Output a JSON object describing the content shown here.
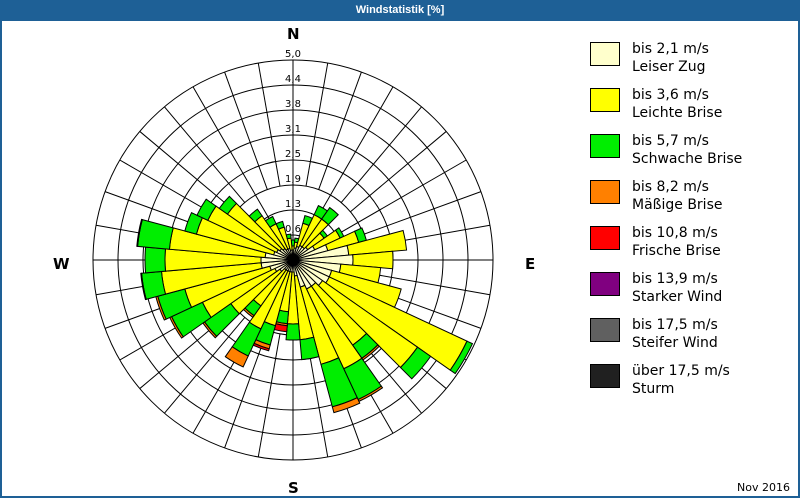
{
  "title": "Windstatistik [%]",
  "footer_date": "Nov 2016",
  "cardinals": {
    "n": "N",
    "e": "E",
    "s": "S",
    "w": "W"
  },
  "colors": [
    "#ffffcc",
    "#ffff00",
    "#00ee00",
    "#ff8000",
    "#ff0000",
    "#800080",
    "#606060",
    "#202020"
  ],
  "legend": [
    {
      "range": "bis 2,1 m/s",
      "name": "Leiser Zug",
      "color": "#ffffcc"
    },
    {
      "range": "bis 3,6 m/s",
      "name": "Leichte Brise",
      "color": "#ffff00"
    },
    {
      "range": "bis 5,7 m/s",
      "name": "Schwache Brise",
      "color": "#00ee00"
    },
    {
      "range": "bis 8,2 m/s",
      "name": "Mäßige Brise",
      "color": "#ff8000"
    },
    {
      "range": "bis 10,8 m/s",
      "name": "Frische Brise",
      "color": "#ff0000"
    },
    {
      "range": "bis 13,9 m/s",
      "name": "Starker Wind",
      "color": "#800080"
    },
    {
      "range": "bis 17,5 m/s",
      "name": "Steifer Wind",
      "color": "#606060"
    },
    {
      "range": "über 17,5 m/s",
      "name": "Sturm",
      "color": "#202020"
    }
  ],
  "chart_data": {
    "type": "wind-rose",
    "title": "Windstatistik [%]",
    "radial_max": 5.0,
    "ring_labels": [
      "0,6",
      "1,3",
      "1,9",
      "2,5",
      "3,1",
      "3,8",
      "4,4",
      "5,0"
    ],
    "directions_deg": [
      0,
      10,
      20,
      30,
      40,
      50,
      60,
      70,
      80,
      90,
      100,
      110,
      120,
      130,
      140,
      150,
      160,
      170,
      180,
      190,
      200,
      210,
      220,
      230,
      240,
      250,
      260,
      270,
      280,
      290,
      300,
      310,
      320,
      330,
      340,
      350
    ],
    "series": [
      {
        "name": "bis 2,1 m/s",
        "values": [
          0.25,
          0.3,
          0.35,
          0.4,
          0.4,
          0.45,
          0.6,
          0.9,
          1.4,
          1.5,
          1.2,
          1.0,
          1.0,
          0.9,
          0.8,
          0.8,
          0.7,
          0.4,
          0.3,
          0.3,
          0.3,
          0.3,
          0.3,
          0.4,
          0.5,
          0.6,
          0.8,
          0.8,
          0.7,
          0.5,
          0.45,
          0.4,
          0.35,
          0.3,
          0.3,
          0.25
        ]
      },
      {
        "name": "bis 3,6 m/s",
        "values": [
          0.1,
          0.15,
          0.6,
          0.85,
          0.85,
          0.5,
          0.7,
          0.8,
          1.45,
          1.0,
          1.0,
          1.8,
          3.8,
          2.9,
          1.8,
          2.2,
          2.0,
          1.6,
          1.3,
          1.0,
          1.4,
          1.6,
          1.1,
          1.5,
          2.0,
          2.2,
          2.5,
          2.4,
          2.4,
          2.0,
          1.9,
          1.6,
          1.0,
          0.7,
          0.55,
          0.3
        ]
      },
      {
        "name": "bis 5,7 m/s",
        "values": [
          0.15,
          0.1,
          0.2,
          0.25,
          0.35,
          0.1,
          0.1,
          0.2,
          0.0,
          0.0,
          0.0,
          0.0,
          0.15,
          0.4,
          0.4,
          0.85,
          1.1,
          0.5,
          0.4,
          0.3,
          0.5,
          0.75,
          0.3,
          0.8,
          0.85,
          0.7,
          0.5,
          0.5,
          0.8,
          0.3,
          0.3,
          0.25,
          0.2,
          0.2,
          0.15,
          0.1
        ]
      },
      {
        "name": "bis 8,2 m/s",
        "values": [
          0,
          0,
          0,
          0,
          0,
          0,
          0,
          0,
          0,
          0,
          0,
          0,
          0,
          0,
          0.05,
          0.05,
          0.15,
          0,
          0,
          0.05,
          0.1,
          0.3,
          0.05,
          0.05,
          0.05,
          0.05,
          0.02,
          0,
          0.02,
          0,
          0,
          0,
          0,
          0,
          0,
          0
        ]
      },
      {
        "name": "bis 10,8 m/s",
        "values": [
          0,
          0,
          0,
          0,
          0,
          0,
          0,
          0,
          0,
          0,
          0,
          0,
          0,
          0,
          0,
          0,
          0,
          0,
          0,
          0.15,
          0.05,
          0,
          0,
          0,
          0,
          0,
          0,
          0,
          0,
          0,
          0,
          0,
          0,
          0,
          0,
          0
        ]
      },
      {
        "name": "bis 13,9 m/s",
        "values": [
          0,
          0,
          0,
          0,
          0,
          0,
          0,
          0,
          0,
          0,
          0,
          0,
          0,
          0,
          0,
          0,
          0,
          0,
          0,
          0,
          0,
          0,
          0,
          0,
          0,
          0,
          0,
          0,
          0,
          0,
          0,
          0,
          0,
          0,
          0,
          0
        ]
      },
      {
        "name": "bis 17,5 m/s",
        "values": [
          0,
          0,
          0,
          0,
          0,
          0,
          0,
          0,
          0,
          0,
          0,
          0,
          0,
          0,
          0,
          0,
          0,
          0,
          0,
          0,
          0,
          0,
          0,
          0,
          0,
          0,
          0,
          0,
          0,
          0,
          0,
          0,
          0,
          0,
          0,
          0
        ]
      },
      {
        "name": "über 17,5 m/s",
        "values": [
          0,
          0,
          0,
          0,
          0,
          0,
          0,
          0,
          0,
          0,
          0,
          0,
          0,
          0,
          0,
          0,
          0,
          0,
          0,
          0,
          0,
          0,
          0,
          0,
          0,
          0,
          0,
          0,
          0,
          0,
          0,
          0,
          0,
          0,
          0,
          0
        ]
      }
    ],
    "legend_position": "right",
    "grid": true
  }
}
